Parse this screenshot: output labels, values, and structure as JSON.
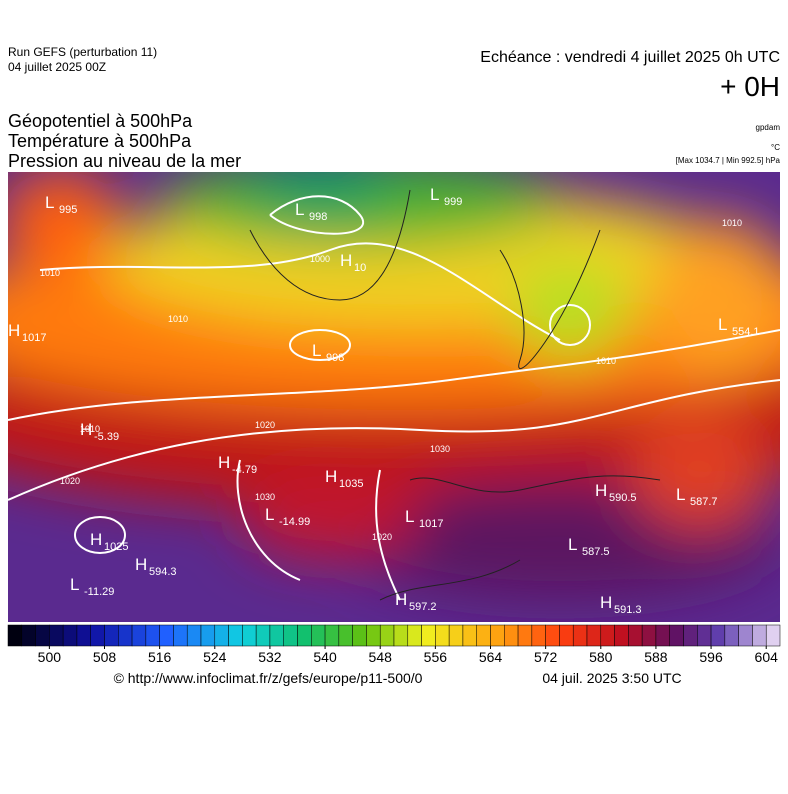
{
  "header": {
    "run": "Run GEFS (perturbation 11)",
    "run_date": "04 juillet 2025 00Z",
    "forecast": "Echéance : vendredi 4 juillet 2025 0h UTC",
    "offset": "+ 0H",
    "titles": [
      "Géopotentiel à 500hPa",
      "Température à 500hPa",
      "Pression au niveau de la mer"
    ],
    "units": [
      "gpdam",
      "°C",
      "[Max 1034.7 | Min 992.5] hPa"
    ]
  },
  "map": {
    "centers": [
      {
        "kind": "L",
        "value": "995"
      },
      {
        "kind": "L",
        "value": "998"
      },
      {
        "kind": "H",
        "value": "1017"
      },
      {
        "kind": "H",
        "value": "10"
      },
      {
        "kind": "L",
        "value": "998"
      },
      {
        "kind": "H",
        "value": "-5.39"
      },
      {
        "kind": "H",
        "value": "-4.79"
      },
      {
        "kind": "H",
        "value": "1035"
      },
      {
        "kind": "L",
        "value": "-14.99"
      },
      {
        "kind": "L",
        "value": "1017"
      },
      {
        "kind": "H",
        "value": "1025"
      },
      {
        "kind": "H",
        "value": "594.3"
      },
      {
        "kind": "L",
        "value": "-11.29"
      },
      {
        "kind": "H",
        "value": "597.2"
      },
      {
        "kind": "L",
        "value": "587.5"
      },
      {
        "kind": "H",
        "value": "591.3"
      },
      {
        "kind": "H",
        "value": "590.5"
      },
      {
        "kind": "L",
        "value": "587.7"
      },
      {
        "kind": "L",
        "value": "554.1"
      },
      {
        "kind": "L",
        "value": "999"
      }
    ],
    "isobar_labels": [
      "1010",
      "1010",
      "1010",
      "1010",
      "1020",
      "1020",
      "1030",
      "1020",
      "1030",
      "1000",
      "1010"
    ]
  },
  "colorbar": {
    "lim": [
      494,
      606
    ],
    "step": 2,
    "ticks": [
      500,
      508,
      516,
      524,
      532,
      540,
      548,
      556,
      564,
      572,
      580,
      588,
      596,
      604
    ]
  },
  "footer": {
    "source": "© http://www.infoclimat.fr/z/gefs/europe/p11-500/0",
    "issued": "04 juil. 2025  3:50 UTC"
  }
}
